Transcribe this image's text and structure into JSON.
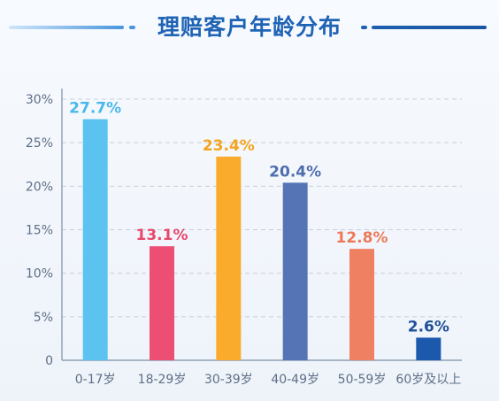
{
  "title": "理赔客户年龄分布",
  "chart_data": {
    "type": "bar",
    "title": "理赔客户年龄分布",
    "xlabel": "",
    "ylabel": "",
    "ylim": [
      0,
      30
    ],
    "yticks": [
      "0",
      "5%",
      "10%",
      "15%",
      "20%",
      "25%",
      "30%"
    ],
    "ytick_values": [
      0,
      5,
      10,
      15,
      20,
      25,
      30
    ],
    "grid": true,
    "categories": [
      "0-17岁",
      "18-29岁",
      "30-39岁",
      "40-49岁",
      "50-59岁",
      "60岁及以上"
    ],
    "values": [
      27.7,
      13.1,
      23.4,
      20.4,
      12.8,
      2.6
    ],
    "data_labels": [
      "27.7%",
      "13.1%",
      "23.4%",
      "20.4%",
      "12.8%",
      "2.6%"
    ],
    "bar_colors": [
      "#5cc2f0",
      "#ec4f73",
      "#fbab2c",
      "#5474b6",
      "#ef8062",
      "#1c58ab"
    ],
    "label_colors": [
      "#49b8ea",
      "#e8476a",
      "#f4a41f",
      "#4f6ead",
      "#ec7a5a",
      "#1f4f96"
    ]
  },
  "colors": {
    "title": "#1f63b5",
    "axis": "#7c8fa8",
    "grid": "#c5cfdc",
    "tick_text": "#5e6f86"
  }
}
